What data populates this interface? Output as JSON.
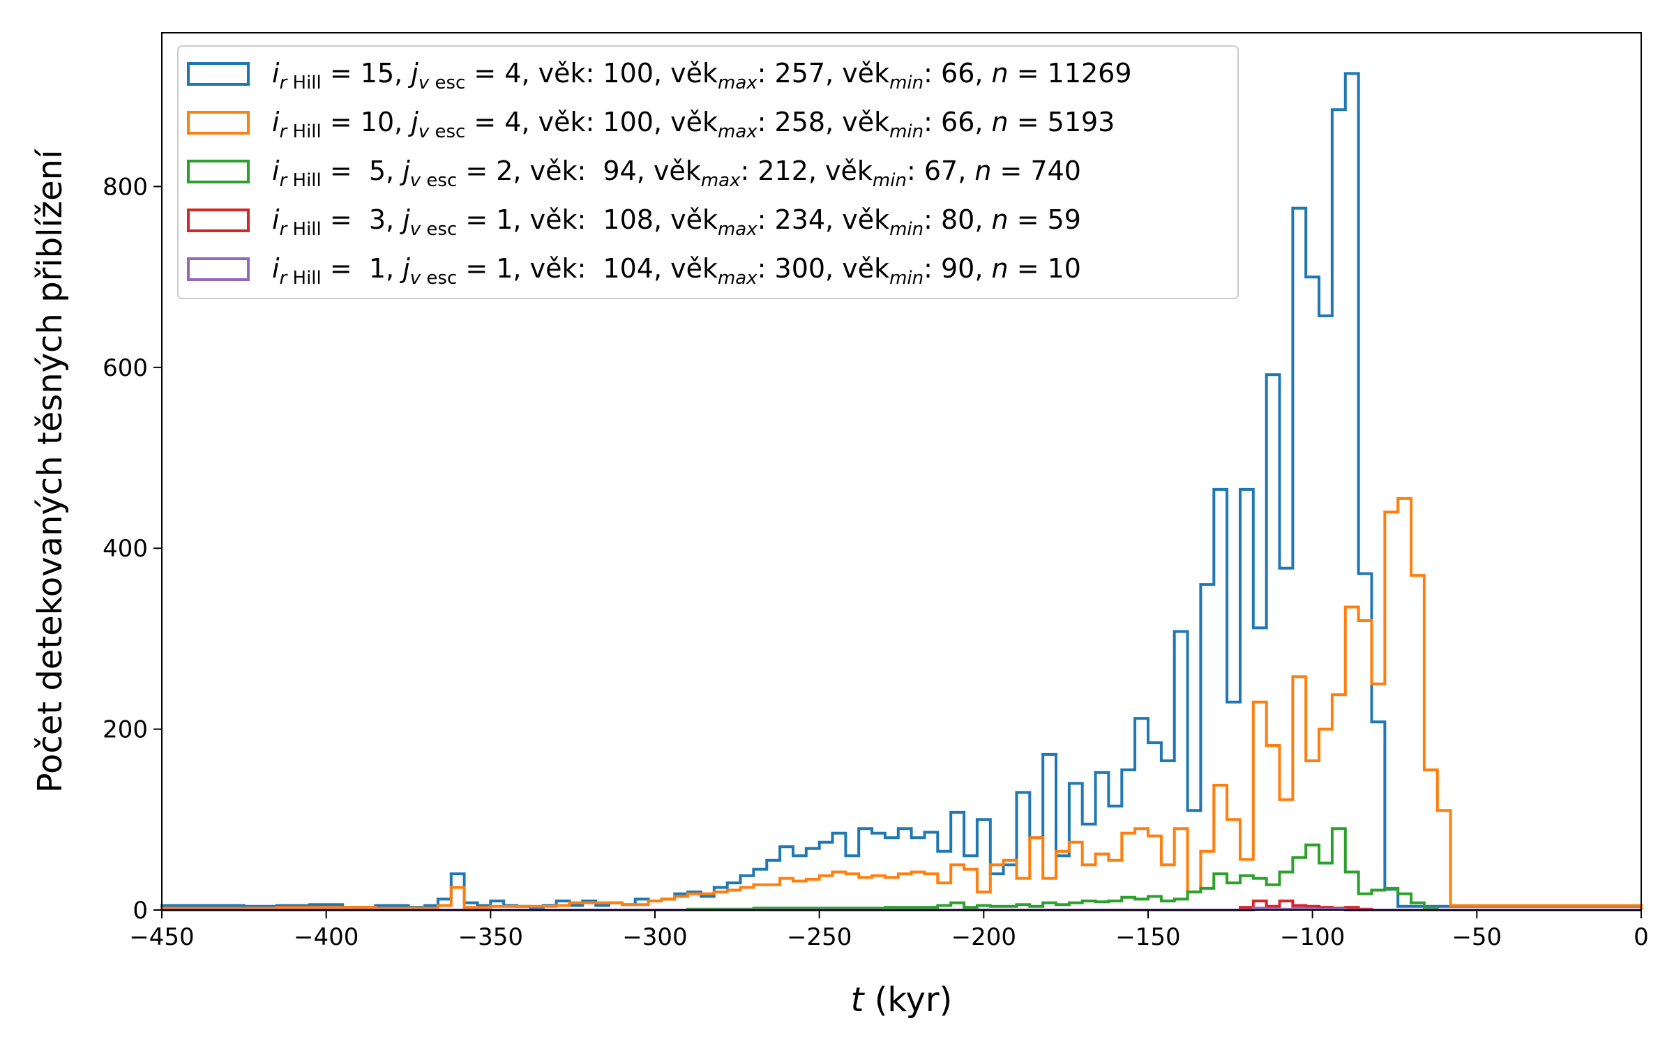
{
  "chart_data": {
    "type": "histogram",
    "xlabel_var": "t",
    "xlabel_unit": " (kyr)",
    "ylabel": "Počet detekovaných těsných přiblížení",
    "xlim": [
      -450,
      0
    ],
    "ylim": [
      0,
      970
    ],
    "xticks": [
      -450,
      -400,
      -350,
      -300,
      -250,
      -200,
      -150,
      -100,
      -50,
      0
    ],
    "xtick_labels": [
      "−450",
      "−400",
      "−350",
      "−300",
      "−250",
      "−200",
      "−150",
      "−100",
      "−50",
      "0"
    ],
    "yticks": [
      0,
      200,
      400,
      600,
      800
    ],
    "ytick_labels": [
      "0",
      "200",
      "400",
      "600",
      "800"
    ],
    "grid": false,
    "legend_position": "upper-left",
    "bin_width": 4.15,
    "series": [
      {
        "name": "i_rHill = 15, j_vesc = 4, věk: 100, věk_max: 257, věk_min: 66, n = 11269",
        "color": "#1f77b4",
        "legend": {
          "i": "15",
          "j": "4",
          "age": "100",
          "age_max": "257",
          "age_min": "66",
          "n": "11269",
          "pad": false
        },
        "bins": [
          [
            -450,
            5
          ],
          [
            -425,
            4
          ],
          [
            -415,
            5
          ],
          [
            -405,
            6
          ],
          [
            -395,
            3
          ],
          [
            -385,
            5
          ],
          [
            -375,
            3
          ],
          [
            -370,
            5
          ],
          [
            -366,
            12
          ],
          [
            -362,
            40
          ],
          [
            -358,
            8
          ],
          [
            -354,
            5
          ],
          [
            -350,
            10
          ],
          [
            -346,
            5
          ],
          [
            -342,
            4
          ],
          [
            -338,
            3
          ],
          [
            -334,
            5
          ],
          [
            -330,
            10
          ],
          [
            -326,
            5
          ],
          [
            -322,
            10
          ],
          [
            -318,
            5
          ],
          [
            -314,
            8
          ],
          [
            -310,
            6
          ],
          [
            -306,
            12
          ],
          [
            -302,
            10
          ],
          [
            -298,
            12
          ],
          [
            -294,
            18
          ],
          [
            -290,
            20
          ],
          [
            -286,
            15
          ],
          [
            -282,
            25
          ],
          [
            -278,
            30
          ],
          [
            -274,
            38
          ],
          [
            -270,
            45
          ],
          [
            -266,
            55
          ],
          [
            -262,
            70
          ],
          [
            -258,
            60
          ],
          [
            -254,
            68
          ],
          [
            -250,
            75
          ],
          [
            -246,
            85
          ],
          [
            -242,
            60
          ],
          [
            -238,
            90
          ],
          [
            -234,
            85
          ],
          [
            -230,
            80
          ],
          [
            -226,
            90
          ],
          [
            -222,
            80
          ],
          [
            -218,
            86
          ],
          [
            -214,
            65
          ],
          [
            -210,
            108
          ],
          [
            -206,
            60
          ],
          [
            -202,
            100
          ],
          [
            -198,
            40
          ],
          [
            -194,
            50
          ],
          [
            -190,
            130
          ],
          [
            -186,
            80
          ],
          [
            -182,
            172
          ],
          [
            -178,
            60
          ],
          [
            -174,
            140
          ],
          [
            -170,
            95
          ],
          [
            -166,
            152
          ],
          [
            -162,
            115
          ],
          [
            -158,
            155
          ],
          [
            -154,
            212
          ],
          [
            -150,
            185
          ],
          [
            -146,
            165
          ],
          [
            -142,
            308
          ],
          [
            -138,
            110
          ],
          [
            -134,
            360
          ],
          [
            -130,
            465
          ],
          [
            -126,
            230
          ],
          [
            -122,
            465
          ],
          [
            -118,
            312
          ],
          [
            -114,
            592
          ],
          [
            -110,
            378
          ],
          [
            -106,
            776
          ],
          [
            -102,
            700
          ],
          [
            -98,
            657
          ],
          [
            -94,
            885
          ],
          [
            -90,
            925
          ],
          [
            -86,
            372
          ],
          [
            -82,
            208
          ],
          [
            -78,
            23
          ],
          [
            -74,
            4
          ],
          [
            0,
            0
          ]
        ]
      },
      {
        "name": "i_rHill = 10, j_vesc = 4, věk: 100, věk_max: 258, věk_min: 66, n = 5193",
        "color": "#ff7f0e",
        "legend": {
          "i": "10",
          "j": "4",
          "age": "100",
          "age_max": "258",
          "age_min": "66",
          "n": "5193",
          "pad": false
        },
        "bins": [
          [
            -450,
            2
          ],
          [
            -415,
            3
          ],
          [
            -385,
            2
          ],
          [
            -366,
            5
          ],
          [
            -362,
            25
          ],
          [
            -358,
            3
          ],
          [
            -350,
            4
          ],
          [
            -330,
            5
          ],
          [
            -326,
            8
          ],
          [
            -318,
            8
          ],
          [
            -310,
            6
          ],
          [
            -302,
            10
          ],
          [
            -298,
            12
          ],
          [
            -294,
            15
          ],
          [
            -290,
            18
          ],
          [
            -286,
            18
          ],
          [
            -282,
            20
          ],
          [
            -278,
            22
          ],
          [
            -274,
            25
          ],
          [
            -270,
            28
          ],
          [
            -266,
            28
          ],
          [
            -262,
            35
          ],
          [
            -258,
            32
          ],
          [
            -254,
            34
          ],
          [
            -250,
            38
          ],
          [
            -246,
            42
          ],
          [
            -242,
            40
          ],
          [
            -238,
            36
          ],
          [
            -234,
            38
          ],
          [
            -230,
            36
          ],
          [
            -226,
            40
          ],
          [
            -222,
            42
          ],
          [
            -218,
            40
          ],
          [
            -214,
            30
          ],
          [
            -210,
            50
          ],
          [
            -206,
            45
          ],
          [
            -202,
            20
          ],
          [
            -198,
            50
          ],
          [
            -194,
            55
          ],
          [
            -190,
            35
          ],
          [
            -186,
            80
          ],
          [
            -182,
            35
          ],
          [
            -178,
            65
          ],
          [
            -174,
            75
          ],
          [
            -170,
            50
          ],
          [
            -166,
            62
          ],
          [
            -162,
            55
          ],
          [
            -158,
            85
          ],
          [
            -154,
            90
          ],
          [
            -150,
            82
          ],
          [
            -146,
            50
          ],
          [
            -142,
            90
          ],
          [
            -138,
            20
          ],
          [
            -134,
            65
          ],
          [
            -130,
            138
          ],
          [
            -126,
            100
          ],
          [
            -122,
            56
          ],
          [
            -118,
            230
          ],
          [
            -114,
            182
          ],
          [
            -110,
            122
          ],
          [
            -106,
            258
          ],
          [
            -102,
            165
          ],
          [
            -98,
            200
          ],
          [
            -94,
            238
          ],
          [
            -90,
            335
          ],
          [
            -86,
            320
          ],
          [
            -82,
            250
          ],
          [
            -78,
            440
          ],
          [
            -74,
            455
          ],
          [
            -70,
            370
          ],
          [
            -66,
            155
          ],
          [
            -62,
            110
          ],
          [
            -58,
            5
          ],
          [
            0,
            0
          ]
        ]
      },
      {
        "name": "i_rHill = 5, j_vesc = 2, věk: 94, věk_max: 212, věk_min: 67, n = 740",
        "color": "#2ca02c",
        "legend": {
          "i": "5",
          "j": "2",
          "age": "94",
          "age_max": "212",
          "age_min": "67",
          "n": "740",
          "pad": true
        },
        "bins": [
          [
            -450,
            0
          ],
          [
            -290,
            1
          ],
          [
            -270,
            2
          ],
          [
            -250,
            2
          ],
          [
            -230,
            3
          ],
          [
            -214,
            5
          ],
          [
            -210,
            8
          ],
          [
            -206,
            3
          ],
          [
            -202,
            5
          ],
          [
            -198,
            4
          ],
          [
            -194,
            4
          ],
          [
            -190,
            6
          ],
          [
            -186,
            4
          ],
          [
            -182,
            8
          ],
          [
            -178,
            6
          ],
          [
            -174,
            8
          ],
          [
            -170,
            10
          ],
          [
            -166,
            9
          ],
          [
            -162,
            10
          ],
          [
            -158,
            14
          ],
          [
            -154,
            12
          ],
          [
            -150,
            15
          ],
          [
            -146,
            10
          ],
          [
            -142,
            12
          ],
          [
            -138,
            20
          ],
          [
            -134,
            24
          ],
          [
            -130,
            40
          ],
          [
            -126,
            30
          ],
          [
            -122,
            38
          ],
          [
            -118,
            35
          ],
          [
            -114,
            28
          ],
          [
            -110,
            42
          ],
          [
            -106,
            58
          ],
          [
            -102,
            72
          ],
          [
            -98,
            52
          ],
          [
            -94,
            90
          ],
          [
            -90,
            42
          ],
          [
            -86,
            18
          ],
          [
            -82,
            22
          ],
          [
            -78,
            24
          ],
          [
            -74,
            18
          ],
          [
            -70,
            8
          ],
          [
            -66,
            2
          ],
          [
            -62,
            0
          ],
          [
            0,
            0
          ]
        ]
      },
      {
        "name": "i_rHill = 3, j_vesc = 1, věk: 108, věk_max: 234, věk_min: 80, n = 59",
        "color": "#d62728",
        "legend": {
          "i": "3",
          "j": "1",
          "age": "108",
          "age_max": "234",
          "age_min": "80",
          "n": "59",
          "pad": true
        },
        "bins": [
          [
            -450,
            0
          ],
          [
            -122,
            3
          ],
          [
            -118,
            10
          ],
          [
            -114,
            4
          ],
          [
            -110,
            10
          ],
          [
            -106,
            5
          ],
          [
            -102,
            4
          ],
          [
            -98,
            3
          ],
          [
            -94,
            2
          ],
          [
            -90,
            3
          ],
          [
            -86,
            1
          ],
          [
            -82,
            0
          ],
          [
            0,
            0
          ]
        ]
      },
      {
        "name": "i_rHill = 1, j_vesc = 1, věk: 104, věk_max: 300, věk_min: 90, n = 10",
        "color": "#9467bd",
        "legend": {
          "i": "1",
          "j": "1",
          "age": "104",
          "age_max": "300",
          "age_min": "90",
          "n": "10",
          "pad": true
        },
        "bins": [
          [
            -450,
            0
          ],
          [
            -118,
            2
          ],
          [
            -114,
            1
          ],
          [
            -106,
            2
          ],
          [
            -102,
            1
          ],
          [
            -94,
            1
          ],
          [
            -90,
            0
          ],
          [
            0,
            0
          ]
        ]
      }
    ]
  }
}
